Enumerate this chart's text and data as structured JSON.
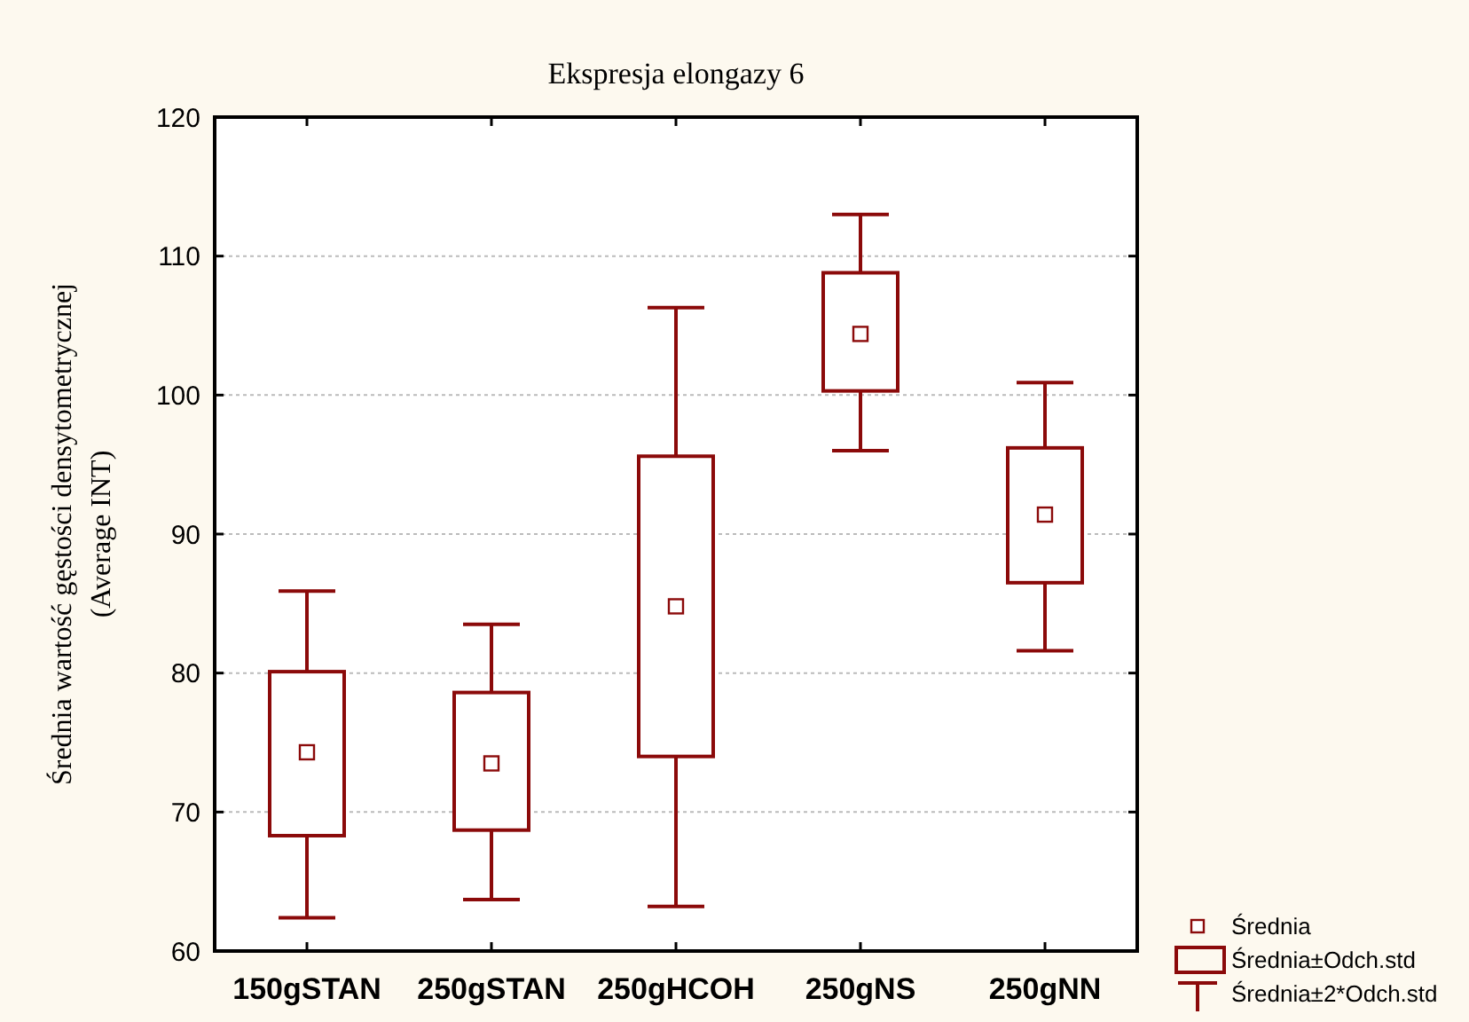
{
  "chart_data": {
    "type": "box",
    "title": "Ekspresja elongazy 6",
    "ylabel": "Średnia wartość gęstości densytometrycznej\n(Average INT)",
    "categories": [
      "150gSTAN",
      "250gSTAN",
      "250gHCOH",
      "250gNS",
      "250gNN"
    ],
    "color": "#8b0a0a",
    "boxes": [
      {
        "low": 62.4,
        "q1": 68.3,
        "median": 74.3,
        "q3": 80.1,
        "high": 85.9
      },
      {
        "low": 63.7,
        "q1": 68.7,
        "median": 73.5,
        "q3": 78.6,
        "high": 83.5
      },
      {
        "low": 63.2,
        "q1": 74.0,
        "median": 84.8,
        "q3": 95.6,
        "high": 106.3
      },
      {
        "low": 96.0,
        "q1": 100.3,
        "median": 104.4,
        "q3": 108.8,
        "high": 113.0
      },
      {
        "low": 81.6,
        "q1": 86.5,
        "median": 91.4,
        "q3": 96.2,
        "high": 100.9
      }
    ],
    "ylim": [
      60,
      120
    ],
    "yticks": [
      60,
      70,
      80,
      90,
      100,
      110,
      120
    ],
    "grid": "y",
    "marker": "square",
    "annotations": [
      "Średnia",
      "Średnia±Odch.std",
      "Średnia±2*Odch.std"
    ]
  }
}
